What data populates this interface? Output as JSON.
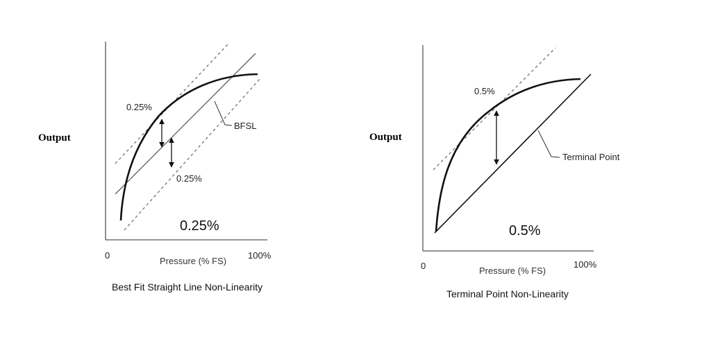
{
  "left": {
    "output_label": "Output",
    "pct_top": "0.25%",
    "pct_bottom": "0.25%",
    "bfsl_label": "BFSL",
    "big_value": "0.25%",
    "tick_zero": "0",
    "tick_full": "100%",
    "xaxis_label": "Pressure (% FS)",
    "caption": "Best Fit Straight Line Non-Linearity"
  },
  "right": {
    "output_label": "Output",
    "pct_top": "0.5%",
    "terminal_label": "Terminal Point",
    "big_value": "0.5%",
    "tick_zero": "0",
    "tick_full": "100%",
    "xaxis_label": "Pressure (% FS)",
    "caption": "Terminal Point Non-Linearity"
  }
}
